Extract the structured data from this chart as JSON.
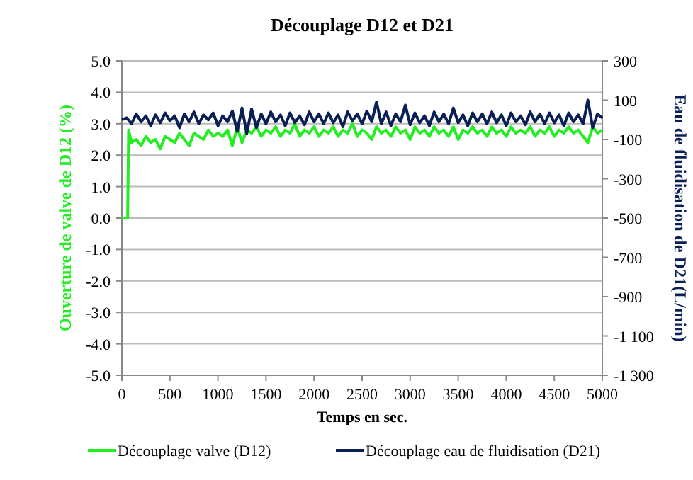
{
  "chart_data": {
    "type": "line",
    "title": "Découplage D12 et D21",
    "xlabel": "Temps en sec.",
    "ylabel": "Ouverture de valve  de D12 (%)",
    "y2label": "Eau de fluidisation  de D21(L/min)",
    "xlim": [
      0,
      5000
    ],
    "xticks": [
      0,
      500,
      1000,
      1500,
      2000,
      2500,
      3000,
      3500,
      4000,
      4500,
      5000
    ],
    "ylim": [
      -5,
      5
    ],
    "yticks": [
      {
        "value": -5,
        "label": "-5.0"
      },
      {
        "value": -4,
        "label": "-4.0"
      },
      {
        "value": -3,
        "label": "-3.0"
      },
      {
        "value": -2,
        "label": "-2.0"
      },
      {
        "value": -1,
        "label": "-1.0"
      },
      {
        "value": 0,
        "label": "0.0"
      },
      {
        "value": 1,
        "label": "1.0"
      },
      {
        "value": 2,
        "label": "2.0"
      },
      {
        "value": 3,
        "label": "3.0"
      },
      {
        "value": 4,
        "label": "4.0"
      },
      {
        "value": 5,
        "label": "5.0"
      }
    ],
    "y2lim": [
      -1300,
      300
    ],
    "y2ticks": [
      {
        "value": -1300,
        "label": "-1 300"
      },
      {
        "value": -1100,
        "label": "-1 100"
      },
      -900,
      -700,
      -500,
      -300,
      -100,
      100,
      300
    ],
    "grid": "y",
    "legend": "bottom",
    "line_style": "solid",
    "series": [
      {
        "name": "Découplage valve (D12)",
        "color": "#22ee22",
        "x": [
          0,
          60,
          70,
          100,
          150,
          200,
          250,
          300,
          350,
          400,
          450,
          500,
          550,
          600,
          650,
          700,
          750,
          800,
          850,
          900,
          950,
          1000,
          1050,
          1100,
          1150,
          1200,
          1250,
          1300,
          1350,
          1400,
          1450,
          1500,
          1550,
          1600,
          1650,
          1700,
          1750,
          1800,
          1850,
          1900,
          1950,
          2000,
          2050,
          2100,
          2150,
          2200,
          2250,
          2300,
          2350,
          2400,
          2450,
          2500,
          2550,
          2600,
          2650,
          2700,
          2750,
          2800,
          2850,
          2900,
          2950,
          3000,
          3050,
          3100,
          3150,
          3200,
          3250,
          3300,
          3350,
          3400,
          3450,
          3500,
          3550,
          3600,
          3650,
          3700,
          3750,
          3800,
          3850,
          3900,
          3950,
          4000,
          4050,
          4100,
          4150,
          4200,
          4250,
          4300,
          4350,
          4400,
          4450,
          4500,
          4550,
          4600,
          4650,
          4700,
          4750,
          4800,
          4850,
          4900,
          4950,
          5000
        ],
        "values": [
          0,
          0,
          2.8,
          2.4,
          2.5,
          2.3,
          2.6,
          2.4,
          2.5,
          2.2,
          2.6,
          2.5,
          2.4,
          2.7,
          2.5,
          2.3,
          2.7,
          2.6,
          2.5,
          2.8,
          2.6,
          2.7,
          2.6,
          2.8,
          2.3,
          2.9,
          2.4,
          2.8,
          2.7,
          2.9,
          2.6,
          2.8,
          2.7,
          2.9,
          2.6,
          2.8,
          2.7,
          3.0,
          2.6,
          2.8,
          2.7,
          2.9,
          2.6,
          2.8,
          2.7,
          2.9,
          2.6,
          2.8,
          2.7,
          3.0,
          2.6,
          2.8,
          2.7,
          2.5,
          2.9,
          2.7,
          2.8,
          2.6,
          2.9,
          2.7,
          2.8,
          2.5,
          2.9,
          2.7,
          2.8,
          2.6,
          2.9,
          2.7,
          2.8,
          2.6,
          2.9,
          2.5,
          2.8,
          2.7,
          2.9,
          2.7,
          2.8,
          2.6,
          2.9,
          2.7,
          2.8,
          2.6,
          2.9,
          2.7,
          2.8,
          2.7,
          2.9,
          2.6,
          2.8,
          2.7,
          2.9,
          2.6,
          2.8,
          2.7,
          2.9,
          2.7,
          2.8,
          2.6,
          2.4,
          2.9,
          2.7,
          2.8
        ]
      },
      {
        "name": "Découplage eau de fluidisation (D21)",
        "color": "#0a1f55",
        "axis": "y2",
        "x": [
          0,
          50,
          100,
          150,
          200,
          250,
          300,
          350,
          400,
          450,
          500,
          550,
          600,
          650,
          700,
          750,
          800,
          850,
          900,
          950,
          1000,
          1050,
          1100,
          1150,
          1200,
          1250,
          1300,
          1350,
          1400,
          1450,
          1500,
          1550,
          1600,
          1650,
          1700,
          1750,
          1800,
          1850,
          1900,
          1950,
          2000,
          2050,
          2100,
          2150,
          2200,
          2250,
          2300,
          2350,
          2400,
          2450,
          2500,
          2550,
          2600,
          2650,
          2700,
          2750,
          2800,
          2850,
          2900,
          2950,
          3000,
          3050,
          3100,
          3150,
          3200,
          3250,
          3300,
          3350,
          3400,
          3450,
          3500,
          3550,
          3600,
          3650,
          3700,
          3750,
          3800,
          3850,
          3900,
          3950,
          4000,
          4050,
          4100,
          4150,
          4200,
          4250,
          4300,
          4350,
          4400,
          4450,
          4500,
          4550,
          4600,
          4650,
          4700,
          4750,
          4800,
          4850,
          4900,
          4950,
          5000
        ],
        "values": [
          0,
          10,
          -20,
          30,
          -10,
          20,
          -30,
          25,
          -15,
          35,
          -5,
          20,
          -40,
          30,
          -10,
          40,
          -20,
          25,
          0,
          35,
          -30,
          20,
          -10,
          45,
          -60,
          60,
          -70,
          55,
          -40,
          30,
          -20,
          40,
          -10,
          25,
          -30,
          35,
          -15,
          20,
          -25,
          40,
          -10,
          30,
          -20,
          35,
          -15,
          25,
          -35,
          40,
          -5,
          30,
          -20,
          45,
          -10,
          90,
          -20,
          40,
          -30,
          30,
          -10,
          75,
          -25,
          35,
          -15,
          20,
          -30,
          40,
          -10,
          30,
          -20,
          60,
          -15,
          25,
          -30,
          35,
          -10,
          30,
          -20,
          40,
          -15,
          25,
          -30,
          35,
          -10,
          20,
          -25,
          40,
          -10,
          30,
          -20,
          35,
          -15,
          25,
          -30,
          35,
          -10,
          25,
          -20,
          100,
          -40,
          30,
          10
        ]
      }
    ]
  }
}
